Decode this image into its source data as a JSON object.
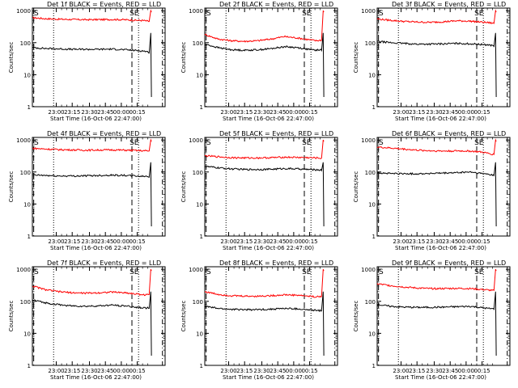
{
  "chart_data": [
    {
      "type": "line",
      "title": "Det 1f BLACK = Events, RED = LLD",
      "ylabel": "Counts/sec",
      "xlabel": "Start Time (16-Oct-06 22:47:00)",
      "xticks": [
        "23:00",
        "23:15",
        "23:30",
        "23:45",
        "00:00",
        "00:15"
      ],
      "yticks": [
        "1",
        "10",
        "100",
        "1000"
      ],
      "yscale": "log",
      "ylim": [
        1,
        1200
      ],
      "markers": {
        "left": "S",
        "right": "SE"
      },
      "series": [
        {
          "color": "#ff0000",
          "values": [
            600,
            560,
            540,
            530,
            520,
            525,
            530,
            520,
            500,
            490,
            460,
            1000
          ]
        },
        {
          "color": "#000000",
          "values": [
            70,
            66,
            64,
            62,
            62,
            62,
            63,
            60,
            57,
            55,
            50,
            200
          ]
        }
      ]
    },
    {
      "type": "line",
      "title": "Det 2f BLACK = Events, RED = LLD",
      "ylabel": "Counts/sec",
      "xlabel": "Start Time (16-Oct-06 22:47:00)",
      "xticks": [
        "23:00",
        "23:15",
        "23:30",
        "23:45",
        "00:00",
        "00:15"
      ],
      "yticks": [
        "1",
        "10",
        "100",
        "1000"
      ],
      "yscale": "log",
      "ylim": [
        1,
        1200
      ],
      "markers": {
        "left": "S",
        "right": "SE"
      },
      "series": [
        {
          "color": "#ff0000",
          "values": [
            180,
            130,
            115,
            110,
            115,
            130,
            155,
            140,
            125,
            115,
            120,
            1000
          ]
        },
        {
          "color": "#000000",
          "values": [
            90,
            70,
            60,
            58,
            60,
            65,
            75,
            70,
            62,
            58,
            60,
            200
          ]
        }
      ]
    },
    {
      "type": "line",
      "title": "Det 3f BLACK = Events, RED = LLD",
      "ylabel": "Counts/sec",
      "xlabel": "Start Time (16-Oct-06 22:47:00)",
      "xticks": [
        "23:00",
        "23:15",
        "23:30",
        "23:45",
        "00:00",
        "00:15"
      ],
      "yticks": [
        "1",
        "10",
        "100",
        "1000"
      ],
      "yscale": "log",
      "ylim": [
        1,
        1200
      ],
      "markers": {
        "left": "S",
        "right": "SE"
      },
      "series": [
        {
          "color": "#ff0000",
          "values": [
            550,
            500,
            460,
            440,
            430,
            450,
            480,
            470,
            440,
            420,
            400,
            1000
          ]
        },
        {
          "color": "#000000",
          "values": [
            110,
            100,
            95,
            90,
            90,
            92,
            95,
            92,
            88,
            85,
            80,
            200
          ]
        }
      ]
    },
    {
      "type": "line",
      "title": "Det 4f BLACK = Events, RED = LLD",
      "ylabel": "Counts/sec",
      "xlabel": "Start Time (16-Oct-06 22:47:00)",
      "xticks": [
        "23:00",
        "23:15",
        "23:30",
        "23:45",
        "00:00",
        "00:15"
      ],
      "yticks": [
        "1",
        "10",
        "100",
        "1000"
      ],
      "yscale": "log",
      "ylim": [
        1,
        1200
      ],
      "markers": {
        "left": "S",
        "right": "SE"
      },
      "series": [
        {
          "color": "#ff0000",
          "values": [
            550,
            520,
            500,
            490,
            480,
            485,
            490,
            480,
            470,
            460,
            450,
            1000
          ]
        },
        {
          "color": "#000000",
          "values": [
            80,
            78,
            75,
            75,
            76,
            78,
            80,
            78,
            75,
            73,
            72,
            200
          ]
        }
      ]
    },
    {
      "type": "line",
      "title": "Det 5f BLACK = Events, RED = LLD",
      "ylabel": "Counts/sec",
      "xlabel": "Start Time (16-Oct-06 22:47:00)",
      "xticks": [
        "23:00",
        "23:15",
        "23:30",
        "23:45",
        "00:00",
        "00:15"
      ],
      "yticks": [
        "1",
        "10",
        "100",
        "1000"
      ],
      "yscale": "log",
      "ylim": [
        1,
        1200
      ],
      "markers": {
        "left": "S",
        "right": "SE"
      },
      "series": [
        {
          "color": "#ff0000",
          "values": [
            320,
            300,
            280,
            275,
            275,
            280,
            290,
            285,
            280,
            275,
            270,
            1000
          ]
        },
        {
          "color": "#000000",
          "values": [
            150,
            135,
            125,
            120,
            120,
            122,
            128,
            125,
            120,
            118,
            115,
            200
          ]
        }
      ]
    },
    {
      "type": "line",
      "title": "Det 6f BLACK = Events, RED = LLD",
      "ylabel": "Counts/sec",
      "xlabel": "Start Time (16-Oct-06 22:47:00)",
      "xticks": [
        "23:00",
        "23:15",
        "23:30",
        "23:45",
        "00:00",
        "00:15"
      ],
      "yticks": [
        "1",
        "10",
        "100",
        "1000"
      ],
      "yscale": "log",
      "ylim": [
        1,
        1200
      ],
      "markers": {
        "left": "S",
        "right": "SE"
      },
      "series": [
        {
          "color": "#ff0000",
          "values": [
            600,
            560,
            520,
            480,
            460,
            450,
            455,
            450,
            420,
            380,
            350,
            1000
          ]
        },
        {
          "color": "#000000",
          "values": [
            95,
            90,
            88,
            88,
            90,
            92,
            95,
            100,
            90,
            85,
            80,
            200
          ]
        }
      ]
    },
    {
      "type": "line",
      "title": "Det 7f BLACK = Events, RED = LLD",
      "ylabel": "Counts/sec",
      "xlabel": "Start Time (16-Oct-06 22:47:00)",
      "xticks": [
        "23:00",
        "23:15",
        "23:30",
        "23:45",
        "00:00",
        "00:15"
      ],
      "yticks": [
        "1",
        "10",
        "100",
        "1000"
      ],
      "yscale": "log",
      "ylim": [
        1,
        1200
      ],
      "markers": {
        "left": "S",
        "right": "SE"
      },
      "series": [
        {
          "color": "#ff0000",
          "values": [
            300,
            230,
            200,
            185,
            180,
            185,
            195,
            185,
            170,
            160,
            160,
            1000
          ]
        },
        {
          "color": "#000000",
          "values": [
            110,
            90,
            78,
            72,
            70,
            72,
            76,
            72,
            66,
            62,
            62,
            200
          ]
        }
      ]
    },
    {
      "type": "line",
      "title": "Det 8f BLACK = Events, RED = LLD",
      "ylabel": "Counts/sec",
      "xlabel": "Start Time (16-Oct-06 22:47:00)",
      "xticks": [
        "23:00",
        "23:15",
        "23:30",
        "23:45",
        "00:00",
        "00:15"
      ],
      "yticks": [
        "1",
        "10",
        "100",
        "1000"
      ],
      "yscale": "log",
      "ylim": [
        1,
        1200
      ],
      "markers": {
        "left": "S",
        "right": "SE"
      },
      "series": [
        {
          "color": "#ff0000",
          "values": [
            200,
            165,
            150,
            145,
            145,
            150,
            160,
            155,
            145,
            138,
            140,
            1000
          ]
        },
        {
          "color": "#000000",
          "values": [
            70,
            60,
            56,
            55,
            55,
            57,
            60,
            58,
            54,
            52,
            52,
            200
          ]
        }
      ]
    },
    {
      "type": "line",
      "title": "Det 9f BLACK = Events, RED = LLD",
      "ylabel": "Counts/sec",
      "xlabel": "Start Time (16-Oct-06 22:47:00)",
      "xticks": [
        "23:00",
        "23:15",
        "23:30",
        "23:45",
        "00:00",
        "00:15"
      ],
      "yticks": [
        "1",
        "10",
        "100",
        "1000"
      ],
      "yscale": "log",
      "ylim": [
        1,
        1200
      ],
      "markers": {
        "left": "S",
        "right": "SE"
      },
      "series": [
        {
          "color": "#ff0000",
          "values": [
            350,
            310,
            280,
            260,
            250,
            250,
            255,
            250,
            235,
            225,
            215,
            1000
          ]
        },
        {
          "color": "#000000",
          "values": [
            80,
            70,
            66,
            65,
            65,
            66,
            68,
            70,
            64,
            60,
            58,
            200
          ]
        }
      ]
    }
  ]
}
